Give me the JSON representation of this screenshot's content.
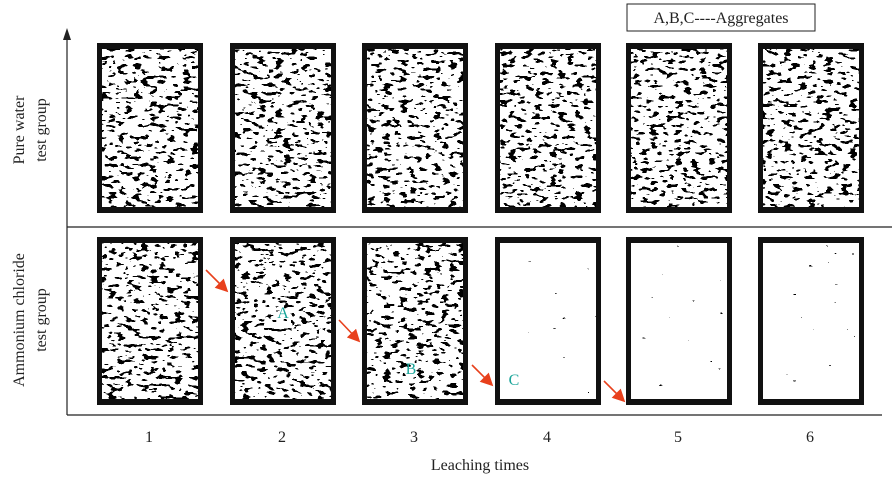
{
  "legend": "A,B,C----Aggregates",
  "rows": [
    [
      "Pure water",
      "test group"
    ],
    [
      "Ammonium chloride",
      "test group"
    ]
  ],
  "columns": [
    "1",
    "2",
    "3",
    "4",
    "5",
    "6"
  ],
  "x_axis_label": "Leaching times",
  "markers": [
    "A",
    "B",
    "C"
  ]
}
